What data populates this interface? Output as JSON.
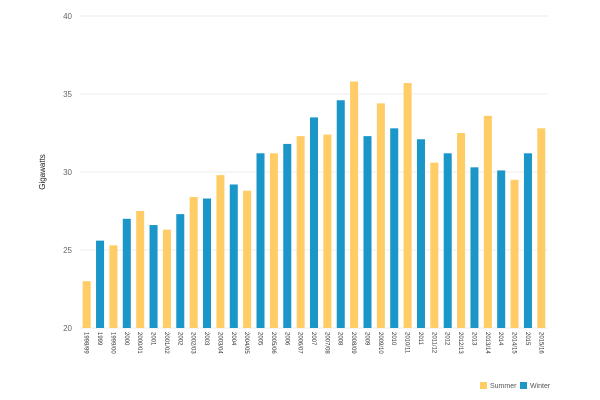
{
  "chart_data": {
    "type": "bar",
    "ylabel": "Gigawatts",
    "ylim": [
      20,
      40
    ],
    "yticks": [
      20,
      25,
      30,
      35,
      40
    ],
    "grid": true,
    "legend_position": "bottom-right",
    "series": [
      {
        "name": "Summer",
        "color": "#FFCC66"
      },
      {
        "name": "Winter",
        "color": "#1B96C9"
      }
    ],
    "categories": [
      "1998/99",
      "1999",
      "1999/00",
      "2000",
      "2000/01",
      "2001",
      "2001/02",
      "2002",
      "2002/03",
      "2003",
      "2003/04",
      "2004",
      "2004/05",
      "2005",
      "2005/06",
      "2006",
      "2006/07",
      "2007",
      "2007/08",
      "2008",
      "2008/09",
      "2009",
      "2009/10",
      "2010",
      "2010/11",
      "2011",
      "2011/12",
      "2012",
      "2012/13",
      "2013",
      "2013/14",
      "2014",
      "2014/15",
      "2015",
      "2015/16"
    ],
    "bars": [
      {
        "category": "1998/99",
        "series": "Summer",
        "value": 23.0
      },
      {
        "category": "1999",
        "series": "Winter",
        "value": 25.6
      },
      {
        "category": "1999/00",
        "series": "Summer",
        "value": 25.3
      },
      {
        "category": "2000",
        "series": "Winter",
        "value": 27.0
      },
      {
        "category": "2000/01",
        "series": "Summer",
        "value": 27.5
      },
      {
        "category": "2001",
        "series": "Winter",
        "value": 26.6
      },
      {
        "category": "2001/02",
        "series": "Summer",
        "value": 26.3
      },
      {
        "category": "2002",
        "series": "Winter",
        "value": 27.3
      },
      {
        "category": "2002/03",
        "series": "Summer",
        "value": 28.4
      },
      {
        "category": "2003",
        "series": "Winter",
        "value": 28.3
      },
      {
        "category": "2003/04",
        "series": "Summer",
        "value": 29.8
      },
      {
        "category": "2004",
        "series": "Winter",
        "value": 29.2
      },
      {
        "category": "2004/05",
        "series": "Summer",
        "value": 28.8
      },
      {
        "category": "2005",
        "series": "Winter",
        "value": 31.2
      },
      {
        "category": "2005/06",
        "series": "Summer",
        "value": 31.2
      },
      {
        "category": "2006",
        "series": "Winter",
        "value": 31.8
      },
      {
        "category": "2006/07",
        "series": "Summer",
        "value": 32.3
      },
      {
        "category": "2007",
        "series": "Winter",
        "value": 33.5
      },
      {
        "category": "2007/08",
        "series": "Summer",
        "value": 32.4
      },
      {
        "category": "2008",
        "series": "Winter",
        "value": 34.6
      },
      {
        "category": "2008/09",
        "series": "Summer",
        "value": 35.8
      },
      {
        "category": "2009",
        "series": "Winter",
        "value": 32.3
      },
      {
        "category": "2009/10",
        "series": "Summer",
        "value": 34.4
      },
      {
        "category": "2010",
        "series": "Winter",
        "value": 32.8
      },
      {
        "category": "2010/11",
        "series": "Summer",
        "value": 35.7
      },
      {
        "category": "2011",
        "series": "Winter",
        "value": 32.1
      },
      {
        "category": "2011/12",
        "series": "Summer",
        "value": 30.6
      },
      {
        "category": "2012",
        "series": "Winter",
        "value": 31.2
      },
      {
        "category": "2012/13",
        "series": "Summer",
        "value": 32.5
      },
      {
        "category": "2013",
        "series": "Winter",
        "value": 30.3
      },
      {
        "category": "2013/14",
        "series": "Summer",
        "value": 33.6
      },
      {
        "category": "2014",
        "series": "Winter",
        "value": 30.1
      },
      {
        "category": "2014/15",
        "series": "Summer",
        "value": 29.5
      },
      {
        "category": "2015",
        "series": "Winter",
        "value": 31.2
      },
      {
        "category": "2015/16",
        "series": "Summer",
        "value": 32.8
      }
    ]
  }
}
